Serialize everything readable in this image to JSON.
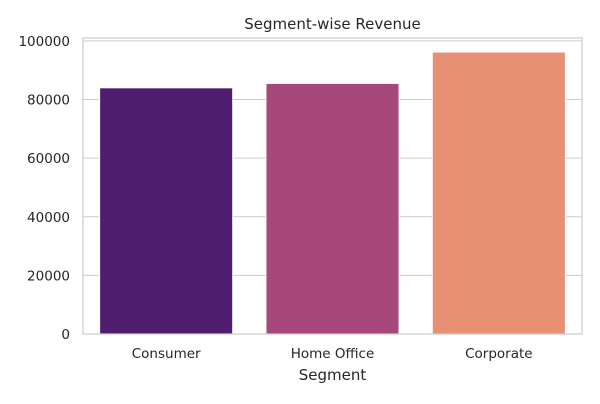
{
  "chart_data": {
    "type": "bar",
    "title": "Segment-wise Revenue",
    "xlabel": "Segment",
    "ylabel": "",
    "categories": [
      "Consumer",
      "Home Office",
      "Corporate"
    ],
    "values": [
      84000,
      85500,
      96200
    ],
    "colors": [
      "#4f1d6e",
      "#a64879",
      "#e89074"
    ],
    "ylim": [
      0,
      101000
    ],
    "yticks": [
      0,
      20000,
      40000,
      60000,
      80000,
      100000
    ],
    "ytick_labels": [
      "0",
      "20000",
      "40000",
      "60000",
      "80000",
      "100000"
    ],
    "grid": "y",
    "legend": "none"
  }
}
